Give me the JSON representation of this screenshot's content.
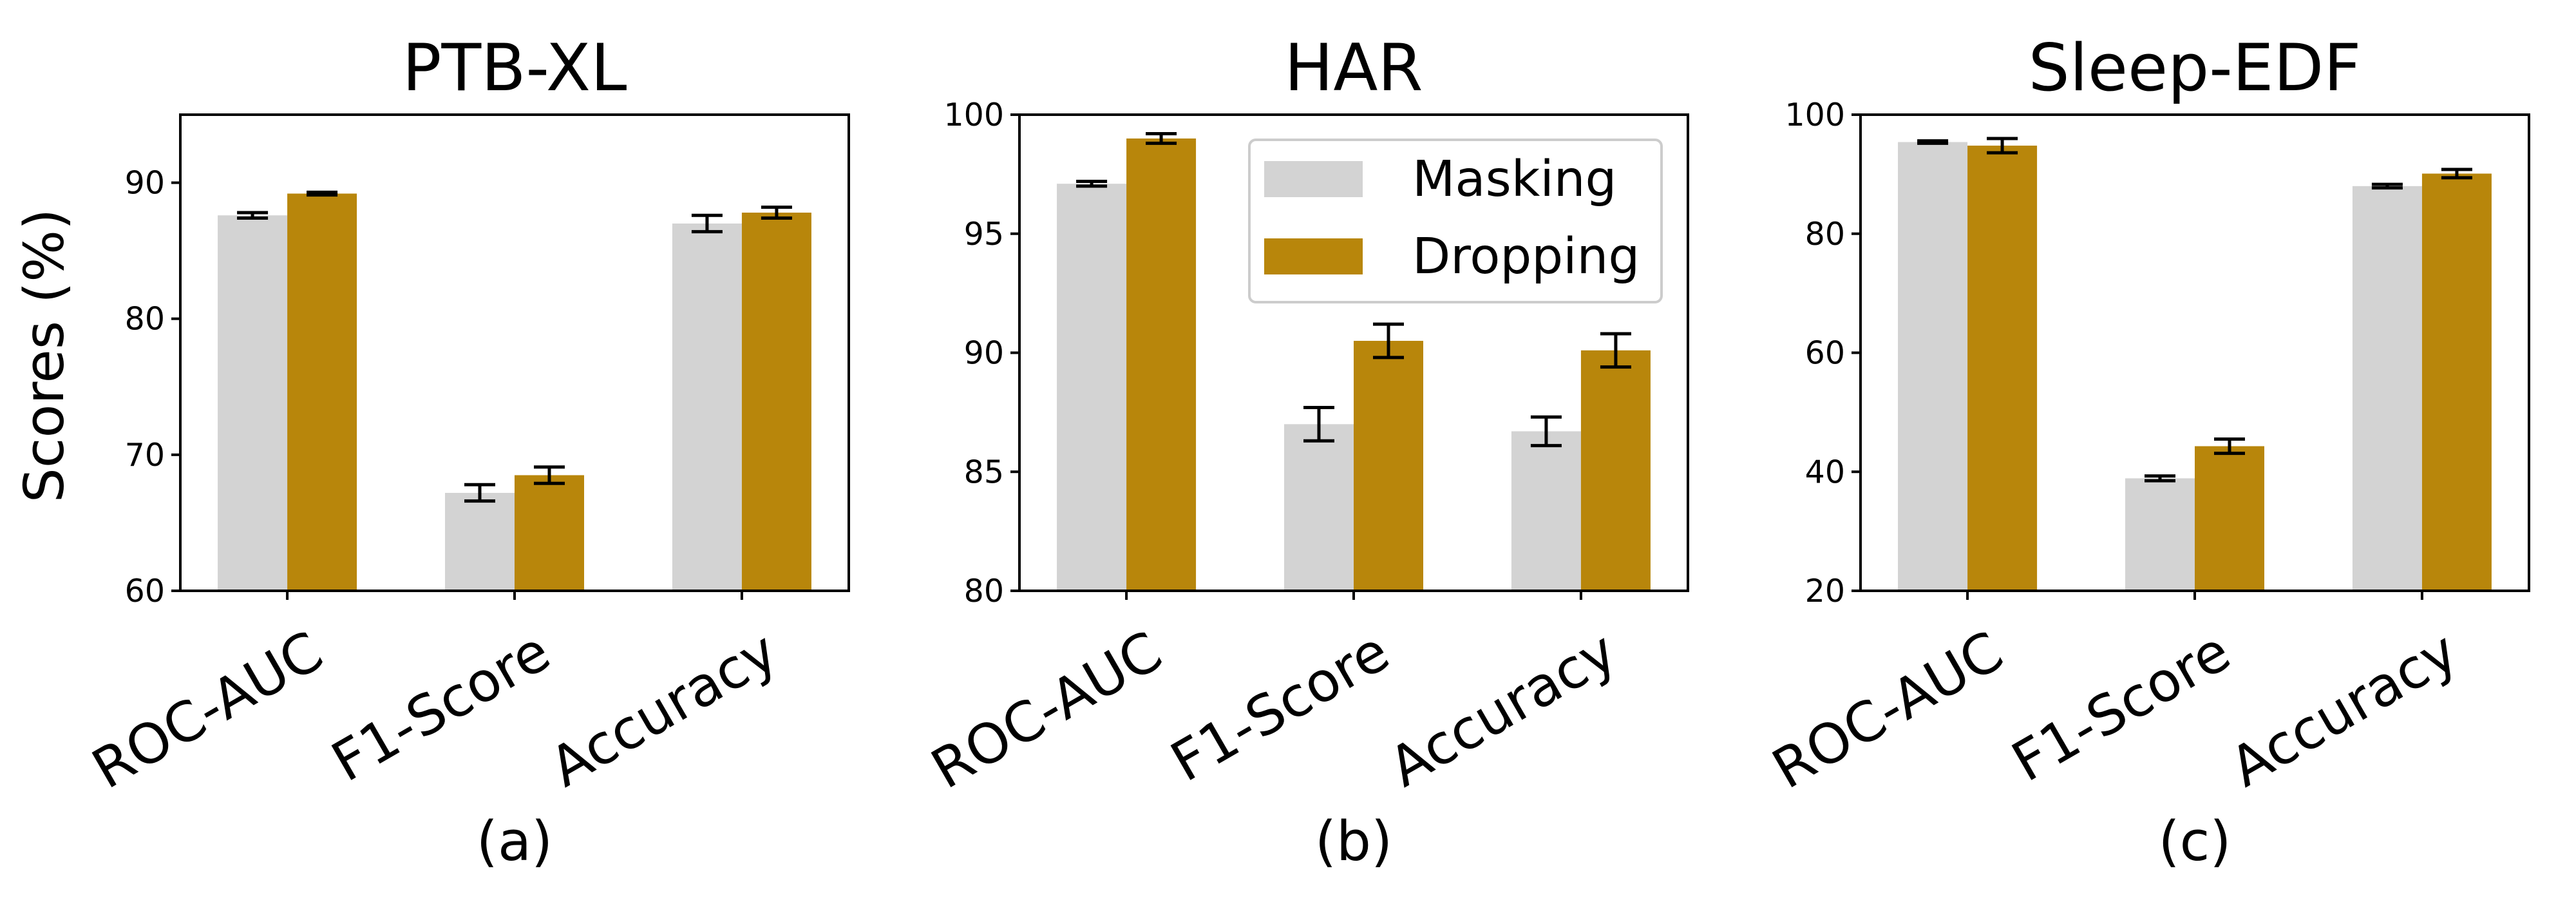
{
  "figure": {
    "ylabel": "Scores (%)",
    "legend": {
      "location": "upper right of panel (b)",
      "entries": [
        "Masking",
        "Dropping"
      ]
    }
  },
  "chart_data": [
    {
      "type": "bar",
      "title": "PTB-XL",
      "caption": "(a)",
      "xlabel": "",
      "ylabel": "Scores (%)",
      "categories": [
        "ROC-AUC",
        "F1-Score",
        "Accuracy"
      ],
      "ylim": [
        60,
        95
      ],
      "yticks": [
        60,
        70,
        80,
        90
      ],
      "grid": false,
      "series": [
        {
          "name": "Masking",
          "color": "#d3d3d3",
          "values": [
            87.6,
            67.2,
            87.0
          ],
          "errors": [
            0.2,
            0.6,
            0.6
          ]
        },
        {
          "name": "Dropping",
          "color": "#b8860b",
          "values": [
            89.2,
            68.5,
            87.8
          ],
          "errors": [
            0.1,
            0.6,
            0.4
          ]
        }
      ]
    },
    {
      "type": "bar",
      "title": "HAR",
      "caption": "(b)",
      "xlabel": "",
      "ylabel": "",
      "categories": [
        "ROC-AUC",
        "F1-Score",
        "Accuracy"
      ],
      "ylim": [
        80,
        100
      ],
      "yticks": [
        80,
        85,
        90,
        95,
        100
      ],
      "grid": false,
      "series": [
        {
          "name": "Masking",
          "color": "#d3d3d3",
          "values": [
            97.1,
            87.0,
            86.7
          ],
          "errors": [
            0.1,
            0.7,
            0.6
          ]
        },
        {
          "name": "Dropping",
          "color": "#b8860b",
          "values": [
            99.0,
            90.5,
            90.1
          ],
          "errors": [
            0.2,
            0.7,
            0.7
          ]
        }
      ]
    },
    {
      "type": "bar",
      "title": "Sleep-EDF",
      "caption": "(c)",
      "xlabel": "",
      "ylabel": "",
      "categories": [
        "ROC-AUC",
        "F1-Score",
        "Accuracy"
      ],
      "ylim": [
        20,
        100
      ],
      "yticks": [
        20,
        40,
        60,
        80,
        100
      ],
      "grid": false,
      "series": [
        {
          "name": "Masking",
          "color": "#d3d3d3",
          "values": [
            95.4,
            38.9,
            88.0
          ],
          "errors": [
            0.2,
            0.4,
            0.3
          ]
        },
        {
          "name": "Dropping",
          "color": "#b8860b",
          "values": [
            94.8,
            44.3,
            90.1
          ],
          "errors": [
            1.2,
            1.2,
            0.7
          ]
        }
      ]
    }
  ]
}
